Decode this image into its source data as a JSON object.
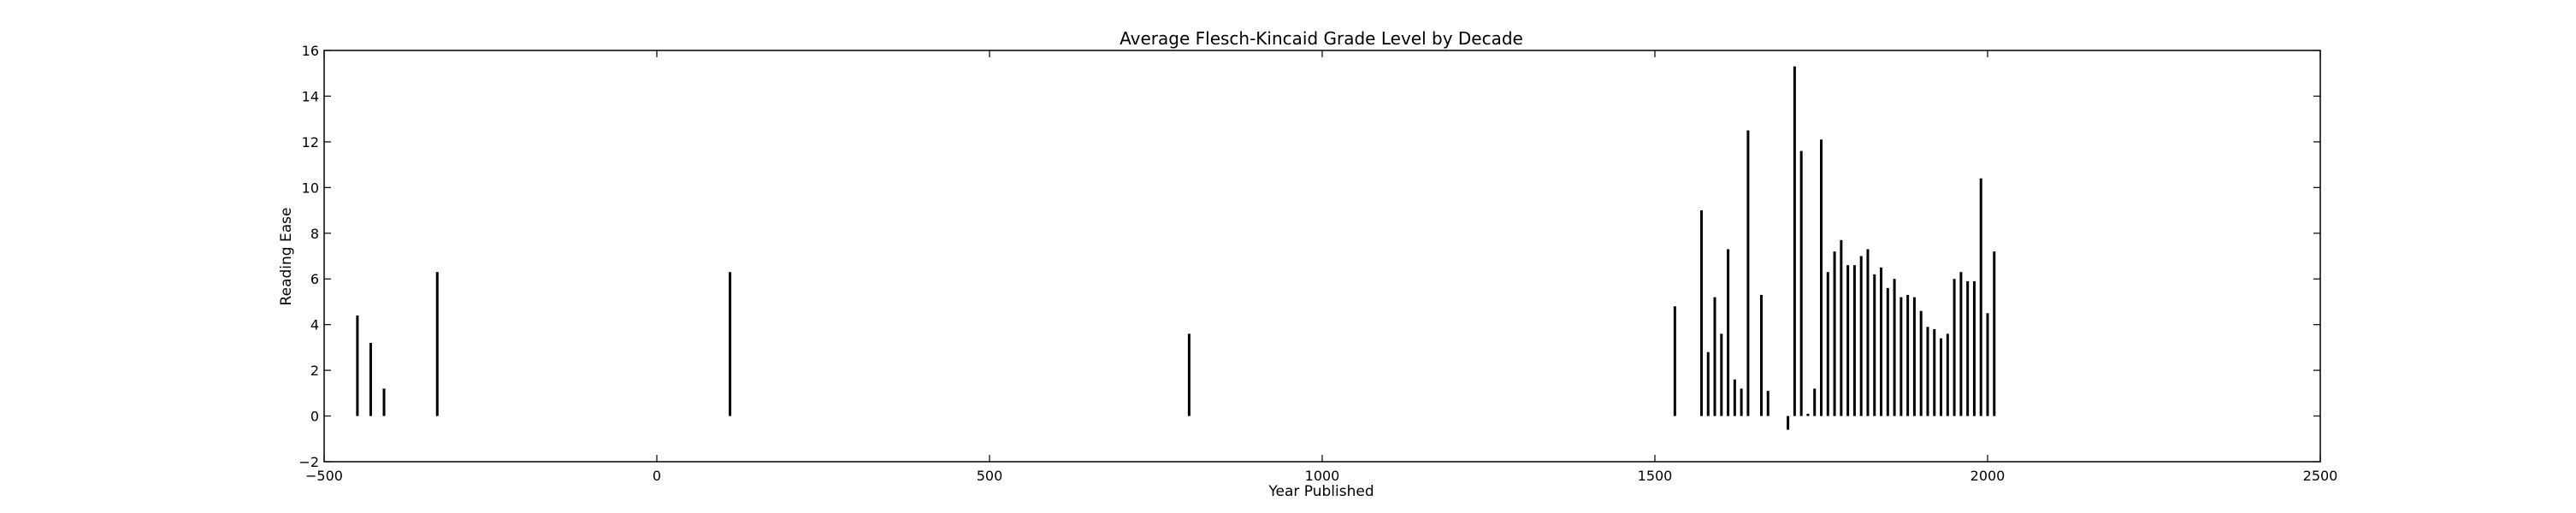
{
  "chart_data": {
    "type": "bar",
    "title": "Average Flesch-Kincaid Grade Level by Decade",
    "xlabel": "Year Published",
    "ylabel": "Reading Ease",
    "xlim": [
      -500,
      2500
    ],
    "ylim": [
      -2,
      16
    ],
    "xticks": [
      -500,
      0,
      500,
      1000,
      1500,
      2000,
      2500
    ],
    "yticks": [
      -2,
      0,
      2,
      4,
      6,
      8,
      10,
      12,
      14,
      16
    ],
    "grid": false,
    "legend": "none",
    "bar_color": "#000000",
    "series": [
      {
        "x": [
          -450,
          -430,
          -410,
          -330,
          110,
          800,
          1530,
          1570,
          1580,
          1590,
          1600,
          1610,
          1620,
          1630,
          1640,
          1660,
          1670,
          1700,
          1710,
          1720,
          1730,
          1740,
          1750,
          1760,
          1770,
          1780,
          1790,
          1800,
          1810,
          1820,
          1830,
          1840,
          1850,
          1860,
          1870,
          1880,
          1890,
          1900,
          1910,
          1920,
          1930,
          1940,
          1950,
          1960,
          1970,
          1980,
          1990,
          2000,
          2010
        ],
        "values": [
          4.4,
          3.2,
          1.2,
          6.3,
          6.3,
          3.6,
          4.8,
          9.0,
          2.8,
          5.2,
          3.6,
          7.3,
          1.6,
          1.2,
          12.5,
          5.3,
          1.1,
          -0.6,
          15.3,
          11.6,
          0.1,
          1.2,
          12.1,
          6.3,
          7.2,
          7.7,
          6.6,
          6.6,
          7.0,
          7.3,
          6.2,
          6.5,
          5.6,
          6.0,
          5.2,
          5.3,
          5.2,
          4.6,
          3.9,
          3.8,
          3.4,
          3.6,
          6.0,
          6.3,
          5.9,
          5.9,
          10.4,
          4.5,
          7.2
        ]
      }
    ]
  }
}
